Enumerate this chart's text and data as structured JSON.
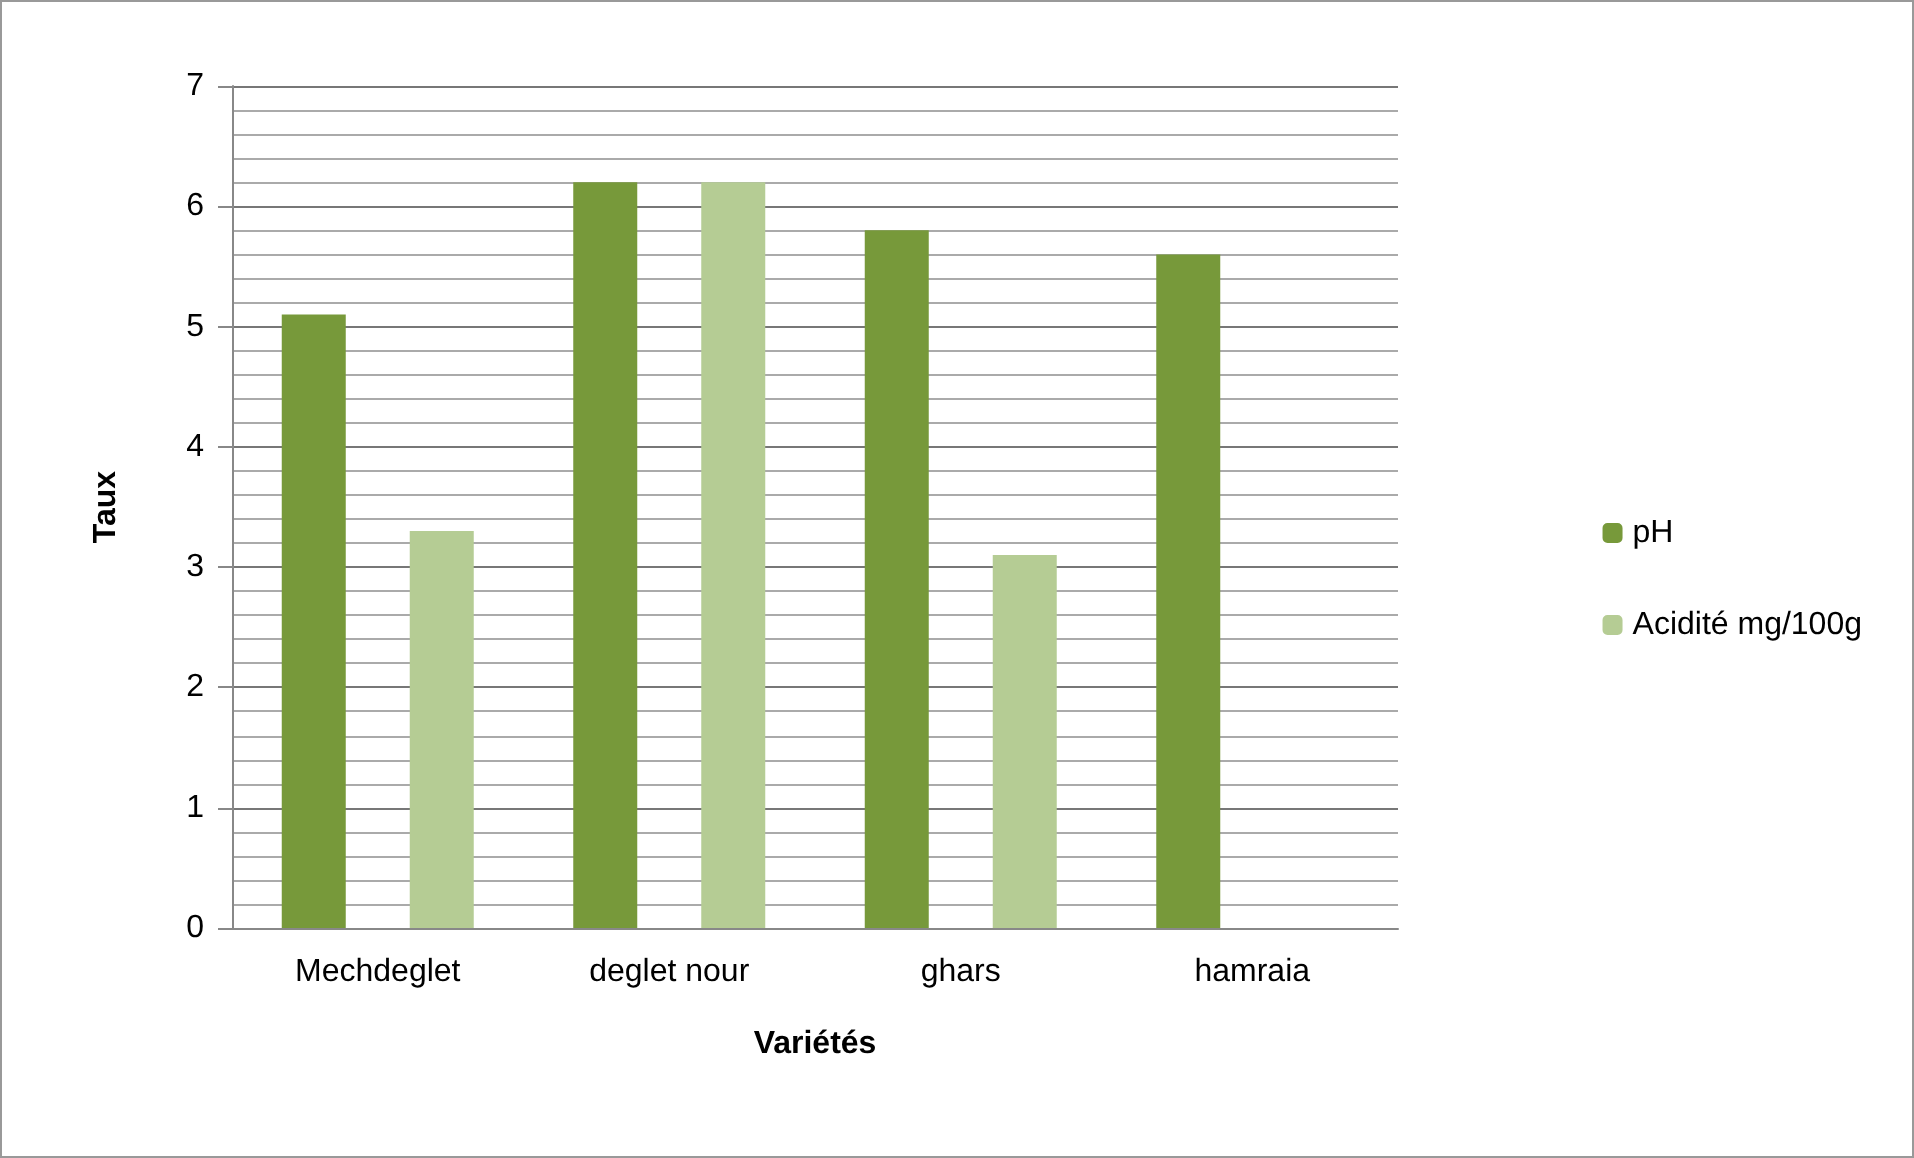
{
  "chart_data": {
    "type": "bar",
    "xlabel": "Variétés",
    "ylabel": "Taux",
    "categories": [
      "Mechdeglet",
      "deglet nour",
      "ghars",
      "hamraia"
    ],
    "series": [
      {
        "name": "pH",
        "color": "#77993a",
        "values": [
          5.1,
          6.2,
          5.8,
          5.6
        ]
      },
      {
        "name": "Acidité mg/100g",
        "color": "#b5cc94",
        "values": [
          3.3,
          6.2,
          3.1,
          null
        ]
      }
    ],
    "ylim": [
      0,
      7
    ],
    "yticks": [
      0,
      1,
      2,
      3,
      4,
      5,
      6,
      7
    ],
    "grid": true,
    "legend": "right"
  }
}
